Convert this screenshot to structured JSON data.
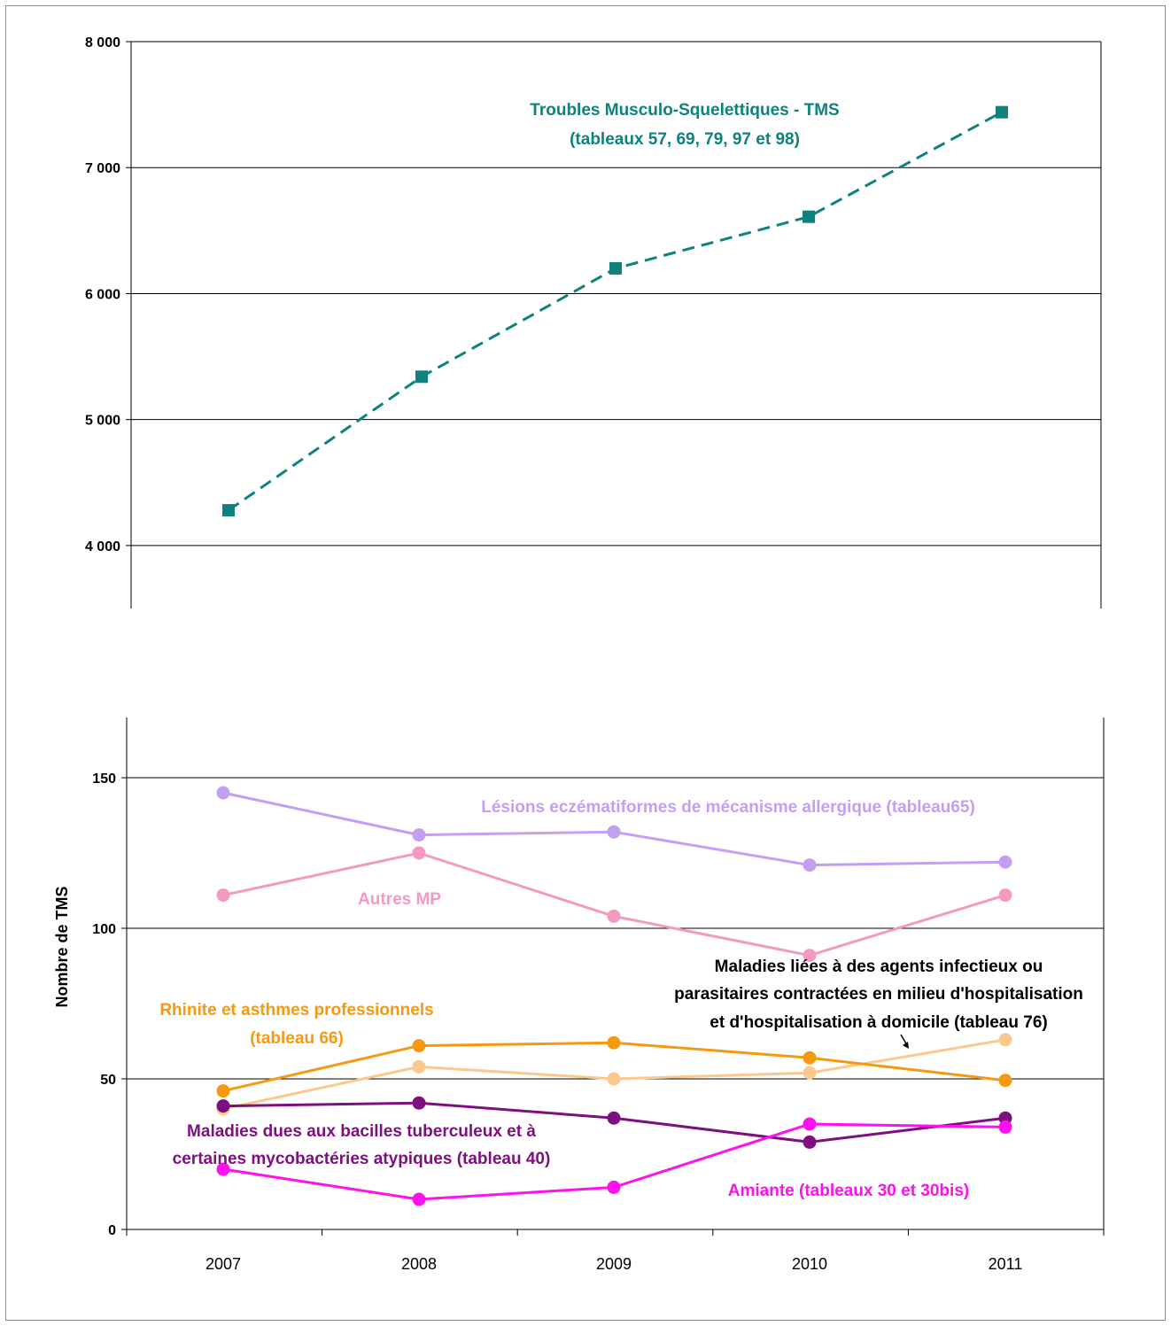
{
  "chart_data": [
    {
      "type": "line",
      "x": [
        "2007",
        "2008",
        "2009",
        "2010",
        "2011"
      ],
      "ylim": [
        3500,
        8000
      ],
      "yticks": [
        4000,
        5000,
        6000,
        7000,
        8000
      ],
      "ytick_labels": [
        "4 000",
        "5 000",
        "6 000",
        "7 000",
        "8 000"
      ],
      "grid": true,
      "series": [
        {
          "key": "tms",
          "values": [
            4280,
            5340,
            6200,
            6610,
            7440
          ],
          "color": "#0e827c",
          "marker": "square",
          "dash": true,
          "label_lines": [
            "Troubles Musculo-Squelettiques - TMS",
            "(tableaux 57, 69, 79, 97 et 98)"
          ]
        }
      ]
    },
    {
      "type": "line",
      "x": [
        "2007",
        "2008",
        "2009",
        "2010",
        "2011"
      ],
      "ylim": [
        0,
        170
      ],
      "yticks": [
        0,
        50,
        100,
        150
      ],
      "ytick_labels": [
        "0",
        "50",
        "100",
        "150"
      ],
      "ylabel": "Nombre de TMS",
      "grid": true,
      "series": [
        {
          "key": "lesions",
          "values": [
            145,
            131,
            132,
            121,
            122
          ],
          "color": "#c39ff2",
          "marker": "circle",
          "label_lines": [
            "Lésions eczématiformes de mécanisme allergique  (tableau65)"
          ]
        },
        {
          "key": "autres",
          "values": [
            111,
            125,
            104,
            91,
            111
          ],
          "color": "#f49ac2",
          "marker": "circle",
          "label_lines": [
            "Autres MP"
          ]
        },
        {
          "key": "rhinite",
          "values": [
            46,
            61,
            62,
            57,
            49.5
          ],
          "color": "#f59a10",
          "marker": "circle",
          "label_lines": [
            "Rhinite et asthmes professionnels",
            "(tableau 66)"
          ]
        },
        {
          "key": "infectieux",
          "values": [
            40,
            54,
            50,
            52,
            63
          ],
          "color": "#fbc98e",
          "marker": "circle",
          "label_lines": [
            "Maladies liées à des agents infectieux ou",
            "parasitaires contractées en milieu d'hospitalisation",
            "et d'hospitalisation à domicile (tableau 76)"
          ]
        },
        {
          "key": "tuberculeux",
          "values": [
            41,
            42,
            37,
            29,
            37
          ],
          "color": "#7e0f7e",
          "marker": "circle",
          "label_lines": [
            "Maladies dues aux bacilles tuberculeux et à",
            "certaines mycobactéries atypiques (tableau 40)"
          ]
        },
        {
          "key": "amiante",
          "values": [
            20,
            10,
            14,
            35,
            34
          ],
          "color": "#ff10ee",
          "marker": "circle",
          "label_lines": [
            "Amiante (tableaux 30 et 30bis)"
          ]
        }
      ]
    }
  ]
}
